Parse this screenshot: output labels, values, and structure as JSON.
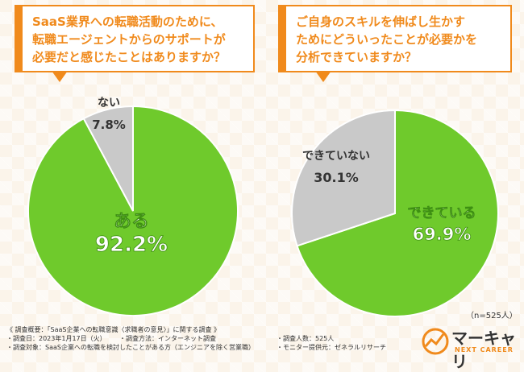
{
  "questions": {
    "left": "SaaS業界への転職活動のために、\n転職エージェントからのサポートが\n必要だと感じたことはありますか？",
    "right": "ご自身のスキルを伸ばし生かす\nためにどういったことが必要かを\n分析できていますか？"
  },
  "chart_data": [
    {
      "type": "pie",
      "slices": [
        {
          "label": "ある",
          "value": 92.2,
          "display": "92.2%",
          "color": "#6fca2c"
        },
        {
          "label": "ない",
          "value": 7.8,
          "display": "7.8%",
          "color": "#c9c9c9"
        }
      ]
    },
    {
      "type": "pie",
      "slices": [
        {
          "label": "できている",
          "value": 69.9,
          "display": "69.9%",
          "color": "#6fca2c"
        },
        {
          "label": "できていない",
          "value": 30.1,
          "display": "30.1%",
          "color": "#c9c9c9"
        }
      ]
    }
  ],
  "sample_size": "（n=525人）",
  "survey": {
    "overview": "《 調査概要：「SaaS企業への転職意識〈求職者の意見〉」に関する調査 》",
    "date": "・調査日：2023年1月17日（火）",
    "method": "・調査方法：インターネット調査",
    "count": "・調査人数：525人",
    "target": "・調査対象：SaaS企業への転職を検討したことがある方（エンジニアを除く営業職）",
    "provider": "・モニター提供元：ゼネラルリサーチ"
  },
  "logo": {
    "name": "マーキャリ",
    "sub": "NEXT CAREER",
    "accent": "#f08a1c"
  }
}
